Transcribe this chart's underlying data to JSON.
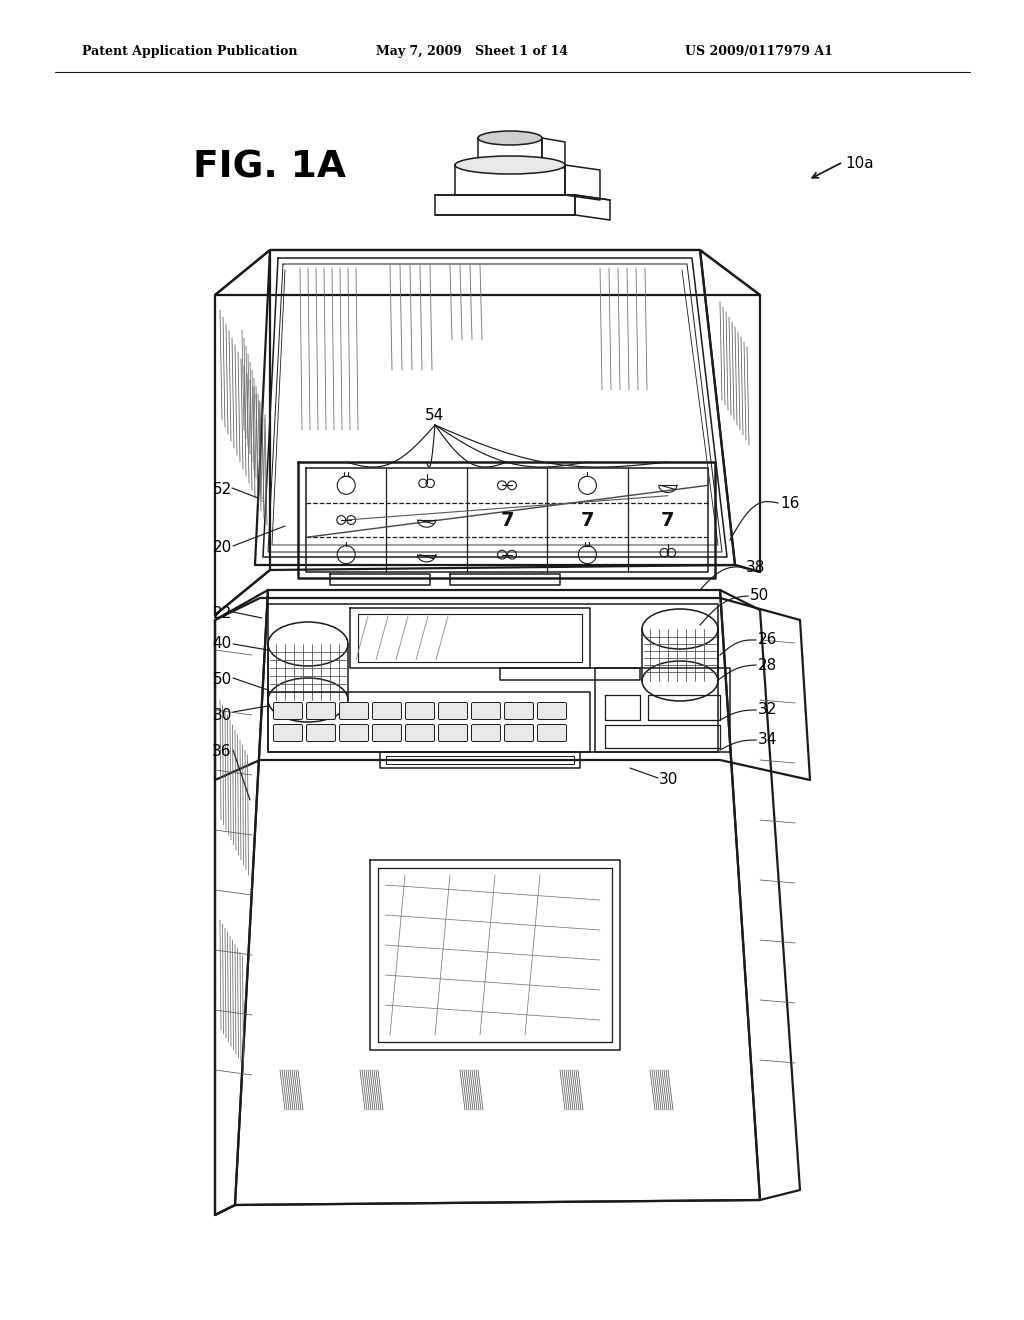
{
  "bg_color": "#ffffff",
  "line_color": "#1a1a1a",
  "text_color": "#000000",
  "header_left": "Patent Application Publication",
  "header_mid": "May 7, 2009   Sheet 1 of 14",
  "header_right": "US 2009/0117979 A1",
  "fig_label": "FIG. 1A",
  "lw_main": 1.6,
  "lw_med": 1.1,
  "lw_thin": 0.7,
  "lw_hatch": 0.55
}
